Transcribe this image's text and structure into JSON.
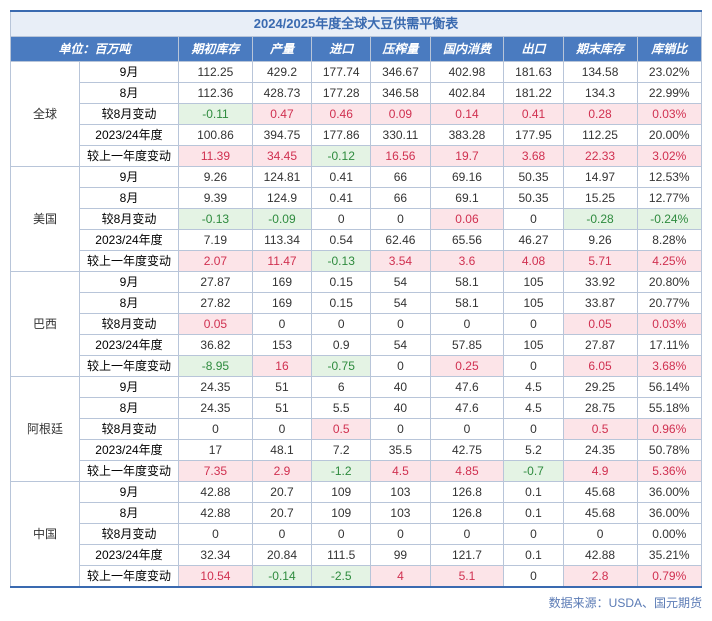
{
  "title": "2024/2025年度全球大豆供需平衡表",
  "unit_label": "单位：百万吨",
  "columns": [
    "期初库存",
    "产量",
    "进口",
    "压榨量",
    "国内消费",
    "出口",
    "期末库存",
    "库销比"
  ],
  "row_labels": [
    "9月",
    "8月",
    "较8月变动",
    "2023/24年度",
    "较上一年度变动"
  ],
  "regions": [
    {
      "name": "全球",
      "rows": [
        {
          "v": [
            "112.25",
            "429.2",
            "177.74",
            "346.67",
            "402.98",
            "181.63",
            "134.58",
            "23.02%"
          ],
          "c": [
            "",
            "",
            "",
            "",
            "",
            "",
            "",
            ""
          ]
        },
        {
          "v": [
            "112.36",
            "428.73",
            "177.28",
            "346.58",
            "402.84",
            "181.22",
            "134.3",
            "22.99%"
          ],
          "c": [
            "",
            "",
            "",
            "",
            "",
            "",
            "",
            ""
          ]
        },
        {
          "v": [
            "-0.11",
            "0.47",
            "0.46",
            "0.09",
            "0.14",
            "0.41",
            "0.28",
            "0.03%"
          ],
          "c": [
            "g",
            "r",
            "r",
            "r",
            "r",
            "r",
            "r",
            "r"
          ]
        },
        {
          "v": [
            "100.86",
            "394.75",
            "177.86",
            "330.11",
            "383.28",
            "177.95",
            "112.25",
            "20.00%"
          ],
          "c": [
            "",
            "",
            "",
            "",
            "",
            "",
            "",
            ""
          ]
        },
        {
          "v": [
            "11.39",
            "34.45",
            "-0.12",
            "16.56",
            "19.7",
            "3.68",
            "22.33",
            "3.02%"
          ],
          "c": [
            "r",
            "r",
            "g",
            "r",
            "r",
            "r",
            "r",
            "r"
          ]
        }
      ]
    },
    {
      "name": "美国",
      "rows": [
        {
          "v": [
            "9.26",
            "124.81",
            "0.41",
            "66",
            "69.16",
            "50.35",
            "14.97",
            "12.53%"
          ],
          "c": [
            "",
            "",
            "",
            "",
            "",
            "",
            "",
            ""
          ]
        },
        {
          "v": [
            "9.39",
            "124.9",
            "0.41",
            "66",
            "69.1",
            "50.35",
            "15.25",
            "12.77%"
          ],
          "c": [
            "",
            "",
            "",
            "",
            "",
            "",
            "",
            ""
          ]
        },
        {
          "v": [
            "-0.13",
            "-0.09",
            "0",
            "0",
            "0.06",
            "0",
            "-0.28",
            "-0.24%"
          ],
          "c": [
            "g",
            "g",
            "",
            "",
            "r",
            "",
            "g",
            "g"
          ]
        },
        {
          "v": [
            "7.19",
            "113.34",
            "0.54",
            "62.46",
            "65.56",
            "46.27",
            "9.26",
            "8.28%"
          ],
          "c": [
            "",
            "",
            "",
            "",
            "",
            "",
            "",
            ""
          ]
        },
        {
          "v": [
            "2.07",
            "11.47",
            "-0.13",
            "3.54",
            "3.6",
            "4.08",
            "5.71",
            "4.25%"
          ],
          "c": [
            "r",
            "r",
            "g",
            "r",
            "r",
            "r",
            "r",
            "r"
          ]
        }
      ]
    },
    {
      "name": "巴西",
      "rows": [
        {
          "v": [
            "27.87",
            "169",
            "0.15",
            "54",
            "58.1",
            "105",
            "33.92",
            "20.80%"
          ],
          "c": [
            "",
            "",
            "",
            "",
            "",
            "",
            "",
            ""
          ]
        },
        {
          "v": [
            "27.82",
            "169",
            "0.15",
            "54",
            "58.1",
            "105",
            "33.87",
            "20.77%"
          ],
          "c": [
            "",
            "",
            "",
            "",
            "",
            "",
            "",
            ""
          ]
        },
        {
          "v": [
            "0.05",
            "0",
            "0",
            "0",
            "0",
            "0",
            "0.05",
            "0.03%"
          ],
          "c": [
            "r",
            "",
            "",
            "",
            "",
            "",
            "r",
            "r"
          ]
        },
        {
          "v": [
            "36.82",
            "153",
            "0.9",
            "54",
            "57.85",
            "105",
            "27.87",
            "17.11%"
          ],
          "c": [
            "",
            "",
            "",
            "",
            "",
            "",
            "",
            ""
          ]
        },
        {
          "v": [
            "-8.95",
            "16",
            "-0.75",
            "0",
            "0.25",
            "0",
            "6.05",
            "3.68%"
          ],
          "c": [
            "g",
            "r",
            "g",
            "",
            "r",
            "",
            "r",
            "r"
          ]
        }
      ]
    },
    {
      "name": "阿根廷",
      "rows": [
        {
          "v": [
            "24.35",
            "51",
            "6",
            "40",
            "47.6",
            "4.5",
            "29.25",
            "56.14%"
          ],
          "c": [
            "",
            "",
            "",
            "",
            "",
            "",
            "",
            ""
          ]
        },
        {
          "v": [
            "24.35",
            "51",
            "5.5",
            "40",
            "47.6",
            "4.5",
            "28.75",
            "55.18%"
          ],
          "c": [
            "",
            "",
            "",
            "",
            "",
            "",
            "",
            ""
          ]
        },
        {
          "v": [
            "0",
            "0",
            "0.5",
            "0",
            "0",
            "0",
            "0.5",
            "0.96%"
          ],
          "c": [
            "",
            "",
            "r",
            "",
            "",
            "",
            "r",
            "r"
          ]
        },
        {
          "v": [
            "17",
            "48.1",
            "7.2",
            "35.5",
            "42.75",
            "5.2",
            "24.35",
            "50.78%"
          ],
          "c": [
            "",
            "",
            "",
            "",
            "",
            "",
            "",
            ""
          ]
        },
        {
          "v": [
            "7.35",
            "2.9",
            "-1.2",
            "4.5",
            "4.85",
            "-0.7",
            "4.9",
            "5.36%"
          ],
          "c": [
            "r",
            "r",
            "g",
            "r",
            "r",
            "g",
            "r",
            "r"
          ]
        }
      ]
    },
    {
      "name": "中国",
      "rows": [
        {
          "v": [
            "42.88",
            "20.7",
            "109",
            "103",
            "126.8",
            "0.1",
            "45.68",
            "36.00%"
          ],
          "c": [
            "",
            "",
            "",
            "",
            "",
            "",
            "",
            ""
          ]
        },
        {
          "v": [
            "42.88",
            "20.7",
            "109",
            "103",
            "126.8",
            "0.1",
            "45.68",
            "36.00%"
          ],
          "c": [
            "",
            "",
            "",
            "",
            "",
            "",
            "",
            ""
          ]
        },
        {
          "v": [
            "0",
            "0",
            "0",
            "0",
            "0",
            "0",
            "0",
            "0.00%"
          ],
          "c": [
            "",
            "",
            "",
            "",
            "",
            "",
            "",
            ""
          ]
        },
        {
          "v": [
            "32.34",
            "20.84",
            "111.5",
            "99",
            "121.7",
            "0.1",
            "42.88",
            "35.21%"
          ],
          "c": [
            "",
            "",
            "",
            "",
            "",
            "",
            "",
            ""
          ]
        },
        {
          "v": [
            "10.54",
            "-0.14",
            "-2.5",
            "4",
            "5.1",
            "0",
            "2.8",
            "0.79%"
          ],
          "c": [
            "r",
            "g",
            "g",
            "r",
            "r",
            "",
            "r",
            "r"
          ]
        }
      ]
    }
  ],
  "footer": "数据来源：USDA、国元期货",
  "colors": {
    "pos_bg": "#fce4e8",
    "pos_fg": "#d03050",
    "neg_bg": "#e4f3e4",
    "neg_fg": "#2e8b3e",
    "text_fg": "#333333"
  }
}
